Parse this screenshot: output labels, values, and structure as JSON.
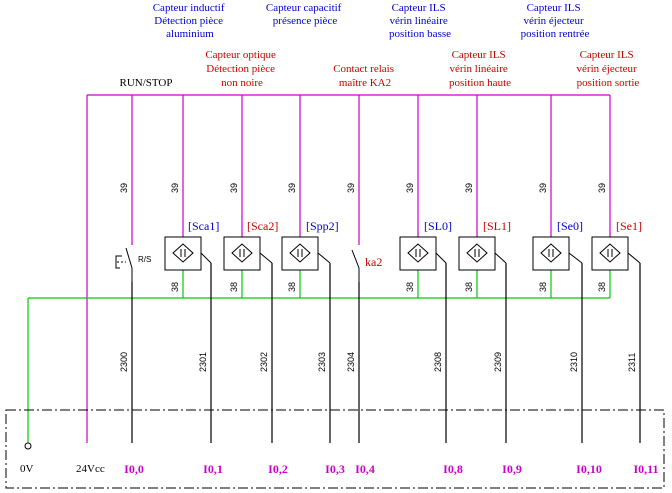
{
  "colors": {
    "positive_wire": "#cc00cc",
    "common_wire": "#00cc00",
    "signal_wire": "#000000",
    "label_blue": "#0000cc",
    "label_red": "#cc0000",
    "io_label": "#cc00cc"
  },
  "top_labels": [
    {
      "lines": [
        "Capteur inductif",
        "Détection pièce",
        "aluminium"
      ],
      "color": "blue"
    },
    {
      "lines": [
        "Capteur  capacitif",
        "présence pièce"
      ],
      "color": "blue"
    },
    {
      "lines": [
        "Capteur ILS",
        "vérin linéaire",
        "position basse"
      ],
      "color": "blue"
    },
    {
      "lines": [
        "Capteur ILS",
        "vérin éjecteur",
        "position rentrée"
      ],
      "color": "blue"
    },
    {
      "lines": [
        "Capteur  optique",
        "Détection pièce",
        "non noire"
      ],
      "color": "red"
    },
    {
      "lines": [
        "Contact relais",
        "maître KA2"
      ],
      "color": "red"
    },
    {
      "lines": [
        "Capteur ILS",
        "vérin linéaire",
        "position haute"
      ],
      "color": "red"
    },
    {
      "lines": [
        "Capteur ILS",
        "vérin éjecteur",
        "position sortie"
      ],
      "color": "red"
    },
    {
      "lines": [
        "RUN/STOP"
      ],
      "color": "black"
    }
  ],
  "wire_39": "39",
  "wire_38": "38",
  "rs_label": "R/S",
  "components": [
    {
      "tag": "[Sca1]",
      "color": "blue",
      "kind": "sensor"
    },
    {
      "tag": "[Sca2]",
      "color": "red",
      "kind": "sensor"
    },
    {
      "tag": "[Spp2]",
      "color": "blue",
      "kind": "sensor"
    },
    {
      "tag": "ka2",
      "color": "red",
      "kind": "contact"
    },
    {
      "tag": "[SL0]",
      "color": "blue",
      "kind": "sensor"
    },
    {
      "tag": "[SL1]",
      "color": "red",
      "kind": "sensor"
    },
    {
      "tag": "[Se0]",
      "color": "blue",
      "kind": "sensor"
    },
    {
      "tag": "[Se1]",
      "color": "red",
      "kind": "sensor"
    }
  ],
  "signal_wires": [
    "2300",
    "2301",
    "2302",
    "2303",
    "2304",
    "2308",
    "2309",
    "2310",
    "2311"
  ],
  "terminals": {
    "zero": "0V",
    "supply": "24Vcc"
  },
  "inputs": [
    "I0,0",
    "I0,1",
    "I0,2",
    "I0,3",
    "I0,4",
    "I0,8",
    "I0,9",
    "I0,10",
    "I0,11"
  ]
}
